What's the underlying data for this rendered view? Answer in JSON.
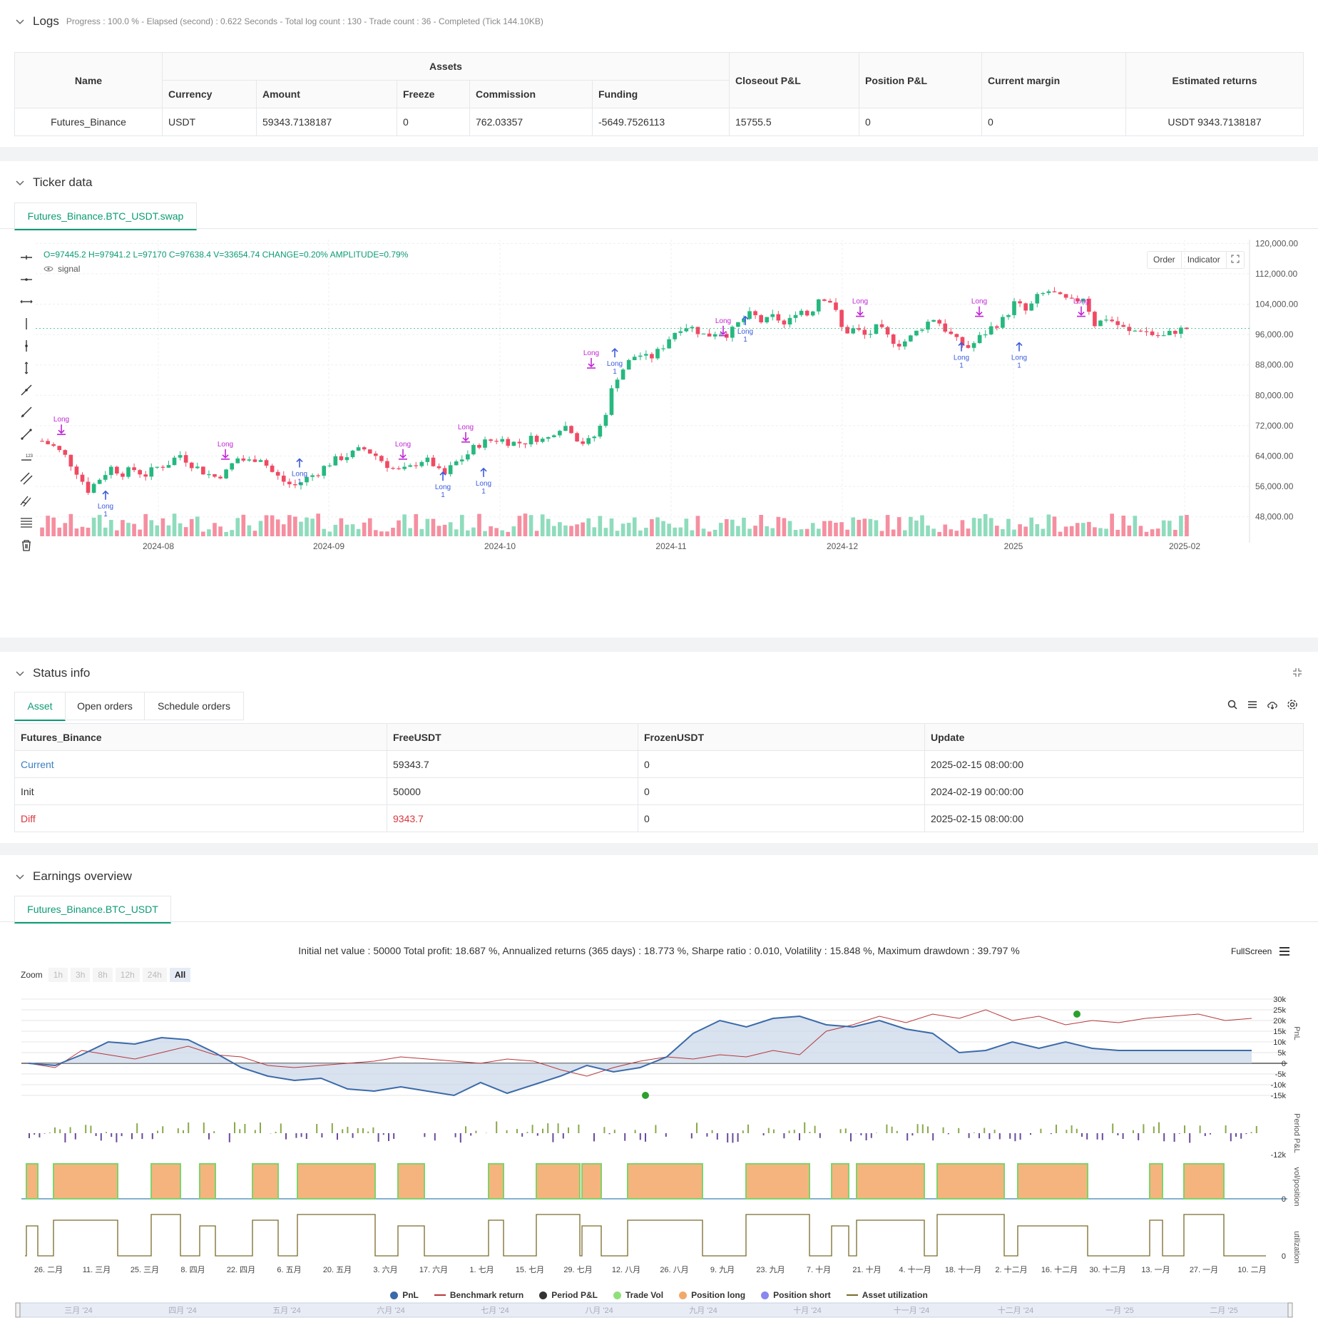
{
  "logs": {
    "title": "Logs",
    "status": "Progress : 100.0 % - Elapsed (second) : 0.622  Seconds - Total log count : 130 - Trade count : 36 - Completed (Tick 144.10KB)",
    "table": {
      "headers": {
        "name": "Name",
        "assets": "Assets",
        "currency": "Currency",
        "amount": "Amount",
        "freeze": "Freeze",
        "commission": "Commission",
        "funding": "Funding",
        "closeout": "Closeout P&L",
        "position": "Position P&L",
        "margin": "Current margin",
        "returns": "Estimated returns"
      },
      "row": {
        "name": "Futures_Binance",
        "currency": "USDT",
        "amount": "59343.7138187",
        "freeze": "0",
        "commission": "762.03357",
        "funding": "-5649.7526113",
        "closeout": "15755.5",
        "position": "0",
        "margin": "0",
        "returns": "USDT 9343.7138187"
      }
    }
  },
  "ticker": {
    "title": "Ticker data",
    "tab": "Futures_Binance.BTC_USDT.swap",
    "ohlc": "O=97445.2 H=97941.2 L=97170 C=97638.4 V=33654.74 CHANGE=0.20% AMPLITUDE=0.79%",
    "signal_label": "signal",
    "btn_order": "Order",
    "btn_indicator": "Indicator",
    "signal_text": "Long",
    "signal_qty": "1"
  },
  "status": {
    "title": "Status info",
    "tabs": [
      "Asset",
      "Open orders",
      "Schedule orders"
    ],
    "headers": [
      "Futures_Binance",
      "FreeUSDT",
      "FrozenUSDT",
      "Update"
    ],
    "rows": [
      {
        "label": "Current",
        "free": "59343.7",
        "frozen": "0",
        "update": "2025-02-15 08:00:00"
      },
      {
        "label": "Init",
        "free": "50000",
        "frozen": "0",
        "update": "2024-02-19 00:00:00"
      },
      {
        "label": "Diff",
        "free": "9343.7",
        "frozen": "0",
        "update": "2025-02-15 08:00:00"
      }
    ]
  },
  "earnings": {
    "title": "Earnings overview",
    "tab": "Futures_Binance.BTC_USDT",
    "summary": "Initial net value : 50000 Total profit: 18.687 %, Annualized returns (365 days) : 18.773 %, Sharpe ratio : 0.010, Volatility : 15.848 %, Maximum drawdown : 39.797 %",
    "fullscreen": "FullScreen",
    "zoom_label": "Zoom",
    "zoom_options": [
      "1h",
      "3h",
      "8h",
      "12h",
      "24h",
      "All"
    ],
    "legend": [
      {
        "label": "PnL",
        "color": "#3b6aa8",
        "kind": "dot"
      },
      {
        "label": "Benchmark return",
        "color": "#b5373a",
        "kind": "line"
      },
      {
        "label": "Period P&L",
        "color": "#333333",
        "kind": "dot"
      },
      {
        "label": "Trade Vol",
        "color": "#90e07a",
        "kind": "dot"
      },
      {
        "label": "Position long",
        "color": "#f3a86b",
        "kind": "dot"
      },
      {
        "label": "Position short",
        "color": "#8888ee",
        "kind": "dot"
      },
      {
        "label": "Asset utilization",
        "color": "#7a6a2a",
        "kind": "line"
      }
    ],
    "y_labels_pnl": [
      "30k",
      "25k",
      "20k",
      "15k",
      "10k",
      "5k",
      "0",
      "-5k",
      "-10k",
      "-15k"
    ],
    "axis_titles": [
      "PnL",
      "Period P&L",
      "vol/position",
      "utilization"
    ],
    "period_min": "-12k",
    "zero": "0",
    "x_labels": [
      "26. 二月",
      "11. 三月",
      "25. 三月",
      "8. 四月",
      "22. 四月",
      "6. 五月",
      "20. 五月",
      "3. 六月",
      "17. 六月",
      "1. 七月",
      "15. 七月",
      "29. 七月",
      "12. 八月",
      "26. 八月",
      "9. 九月",
      "23. 九月",
      "7. 十月",
      "21. 十月",
      "4. 十一月",
      "18. 十一月",
      "2. 十二月",
      "16. 十二月",
      "30. 十二月",
      "13. 一月",
      "27. 一月",
      "10. 二月"
    ],
    "nav_labels": [
      "三月 '24",
      "四月 '24",
      "五月 '24",
      "六月 '24",
      "七月 '24",
      "八月 '24",
      "九月 '24",
      "十月 '24",
      "十一月 '24",
      "十二月 '24",
      "一月 '25",
      "二月 '25"
    ]
  },
  "chart_data": {
    "type": "candlestick",
    "price_ticks": [
      "120,000.00",
      "112,000.00",
      "104,000.00",
      "96,000.00",
      "88,000.00",
      "80,000.00",
      "72,000.00",
      "64,000.00",
      "56,000.00",
      "48,000.00"
    ],
    "price_range": [
      44000,
      121000
    ],
    "x_ticks": [
      "2024-08",
      "2024-09",
      "2024-10",
      "2024-11",
      "2024-12",
      "2025",
      "2025-02"
    ],
    "close_path": [
      68000,
      66500,
      64000,
      60000,
      55000,
      58000,
      61000,
      59500,
      60500,
      59000,
      61000,
      62000,
      64500,
      62000,
      60000,
      58500,
      59500,
      63500,
      62500,
      64000,
      60000,
      57500,
      56000,
      58000,
      59500,
      62000,
      63500,
      64500,
      66000,
      64500,
      62000,
      60000,
      60500,
      63000,
      62500,
      58500,
      62000,
      64000,
      67000,
      68000,
      68500,
      67500,
      67500,
      69000,
      68000,
      71500,
      72000,
      67500,
      68000,
      73000,
      84000,
      88000,
      91000,
      89500,
      92000,
      96000,
      98500,
      97500,
      95500,
      97000,
      96000,
      99500,
      101500,
      99000,
      101000,
      98000,
      103000,
      101000,
      106500,
      104500,
      96500,
      97500,
      95500,
      98000,
      95000,
      93500,
      95500,
      98500,
      100500,
      97000,
      94000,
      92500,
      95500,
      98000,
      100000,
      104500,
      102000,
      106000,
      107500,
      105500,
      104500,
      106000,
      98500,
      100500,
      98500,
      96500,
      97500,
      96000,
      95500,
      97000,
      97600
    ]
  }
}
